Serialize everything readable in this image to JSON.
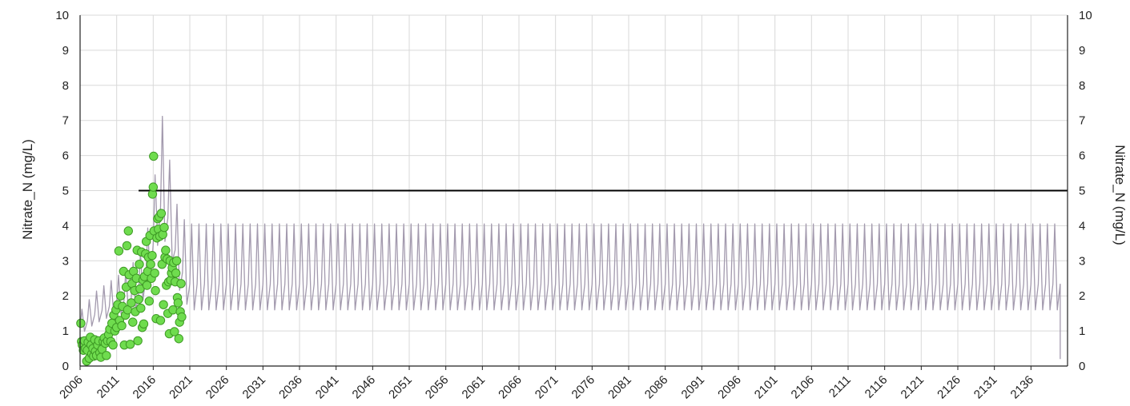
{
  "chart_data": {
    "type": "line",
    "title": "",
    "ylabel": "Nitrate_N (mg/L)",
    "ylabel_right": "Nitrate_N (mg/L)",
    "xlabel": "",
    "xlim": [
      2006,
      2141
    ],
    "ylim": [
      0,
      10
    ],
    "yticks": [
      0,
      1,
      2,
      3,
      4,
      5,
      6,
      7,
      8,
      9,
      10
    ],
    "xticks": [
      "2006",
      "2011",
      "2016",
      "2021",
      "2026",
      "2031",
      "2036",
      "2041",
      "2046",
      "2051",
      "2056",
      "2061",
      "2066",
      "2071",
      "2076",
      "2081",
      "2086",
      "2091",
      "2096",
      "2101",
      "2106",
      "2111",
      "2116",
      "2121",
      "2126",
      "2131",
      "2136"
    ],
    "grid": true,
    "colors": {
      "model": "#a39aae",
      "observed_fill": "#6fdc4e",
      "observed_edge": "#3e9a25",
      "threshold": "#000000",
      "grid": "#d9d9d9",
      "axis": "#222222"
    },
    "series": [
      {
        "kind": "model_line",
        "period_years": 1.0,
        "segments": [
          {
            "year": 2006.0,
            "min": 0.9,
            "max": 1.55
          },
          {
            "year": 2008.0,
            "min": 1.2,
            "max": 2.1
          },
          {
            "year": 2010.0,
            "min": 1.4,
            "max": 2.4
          },
          {
            "year": 2012.0,
            "min": 1.5,
            "max": 2.7
          },
          {
            "year": 2014.0,
            "min": 1.6,
            "max": 3.1
          },
          {
            "year": 2015.5,
            "min": 2.3,
            "max": 4.1
          },
          {
            "year": 2016.5,
            "min": 3.4,
            "max": 5.9
          },
          {
            "year": 2017.3,
            "min": 3.7,
            "max": 7.2
          },
          {
            "year": 2018.3,
            "min": 3.2,
            "max": 5.8
          },
          {
            "year": 2019.5,
            "min": 2.2,
            "max": 4.3
          },
          {
            "year": 2021.0,
            "min": 1.6,
            "max": 4.05
          },
          {
            "year": 2140.0,
            "min": 1.6,
            "max": 4.05
          }
        ]
      },
      {
        "kind": "threshold",
        "x": [
          2014.0,
          2141.0
        ],
        "y": 5.0
      },
      {
        "kind": "observed_points",
        "points": [
          [
            2006.1,
            1.22
          ],
          [
            2006.2,
            0.7
          ],
          [
            2006.3,
            0.6
          ],
          [
            2006.45,
            0.45
          ],
          [
            2006.6,
            0.72
          ],
          [
            2006.75,
            0.5
          ],
          [
            2006.9,
            0.14
          ],
          [
            2007.0,
            0.45
          ],
          [
            2007.1,
            0.68
          ],
          [
            2007.25,
            0.22
          ],
          [
            2007.4,
            0.82
          ],
          [
            2007.5,
            0.6
          ],
          [
            2007.6,
            0.35
          ],
          [
            2007.75,
            0.5
          ],
          [
            2007.85,
            0.28
          ],
          [
            2008.0,
            0.75
          ],
          [
            2008.1,
            0.42
          ],
          [
            2008.25,
            0.3
          ],
          [
            2008.4,
            0.6
          ],
          [
            2008.55,
            0.72
          ],
          [
            2008.7,
            0.38
          ],
          [
            2008.85,
            0.25
          ],
          [
            2009.0,
            0.48
          ],
          [
            2009.15,
            0.7
          ],
          [
            2009.3,
            0.8
          ],
          [
            2009.45,
            0.65
          ],
          [
            2009.6,
            0.3
          ],
          [
            2009.75,
            0.72
          ],
          [
            2009.9,
            0.9
          ],
          [
            2010.05,
            1.05
          ],
          [
            2010.2,
            0.7
          ],
          [
            2010.35,
            1.22
          ],
          [
            2010.5,
            0.6
          ],
          [
            2010.6,
            1.45
          ],
          [
            2010.75,
            1.0
          ],
          [
            2010.9,
            1.6
          ],
          [
            2011.0,
            1.1
          ],
          [
            2011.15,
            1.75
          ],
          [
            2011.3,
            3.28
          ],
          [
            2011.4,
            1.3
          ],
          [
            2011.55,
            2.0
          ],
          [
            2011.7,
            1.15
          ],
          [
            2011.8,
            1.7
          ],
          [
            2011.95,
            2.7
          ],
          [
            2012.05,
            0.6
          ],
          [
            2012.2,
            1.45
          ],
          [
            2012.3,
            2.25
          ],
          [
            2012.4,
            3.43
          ],
          [
            2012.5,
            1.6
          ],
          [
            2012.6,
            3.85
          ],
          [
            2012.7,
            2.6
          ],
          [
            2012.85,
            0.62
          ],
          [
            2013.0,
            1.8
          ],
          [
            2013.1,
            2.35
          ],
          [
            2013.2,
            1.25
          ],
          [
            2013.3,
            2.7
          ],
          [
            2013.45,
            2.15
          ],
          [
            2013.55,
            1.55
          ],
          [
            2013.7,
            2.5
          ],
          [
            2013.8,
            3.3
          ],
          [
            2013.9,
            0.72
          ],
          [
            2014.0,
            1.9
          ],
          [
            2014.1,
            2.9
          ],
          [
            2014.2,
            2.2
          ],
          [
            2014.3,
            1.65
          ],
          [
            2014.4,
            3.25
          ],
          [
            2014.5,
            1.1
          ],
          [
            2014.6,
            2.45
          ],
          [
            2014.7,
            1.2
          ],
          [
            2014.8,
            2.55
          ],
          [
            2014.95,
            3.2
          ],
          [
            2015.05,
            3.55
          ],
          [
            2015.15,
            2.3
          ],
          [
            2015.25,
            2.7
          ],
          [
            2015.35,
            3.1
          ],
          [
            2015.45,
            1.85
          ],
          [
            2015.55,
            3.72
          ],
          [
            2015.65,
            2.9
          ],
          [
            2015.75,
            2.5
          ],
          [
            2015.85,
            3.15
          ],
          [
            2015.9,
            4.9
          ],
          [
            2016.0,
            5.1
          ],
          [
            2016.05,
            5.98
          ],
          [
            2016.1,
            3.85
          ],
          [
            2016.2,
            2.65
          ],
          [
            2016.3,
            2.15
          ],
          [
            2016.4,
            1.35
          ],
          [
            2016.5,
            3.65
          ],
          [
            2016.6,
            4.2
          ],
          [
            2016.7,
            3.9
          ],
          [
            2016.8,
            4.25
          ],
          [
            2016.9,
            3.7
          ],
          [
            2017.0,
            1.3
          ],
          [
            2017.1,
            4.35
          ],
          [
            2017.2,
            2.9
          ],
          [
            2017.3,
            3.75
          ],
          [
            2017.4,
            1.75
          ],
          [
            2017.5,
            3.95
          ],
          [
            2017.6,
            3.1
          ],
          [
            2017.7,
            3.3
          ],
          [
            2017.8,
            2.3
          ],
          [
            2017.9,
            3.05
          ],
          [
            2018.0,
            1.5
          ],
          [
            2018.1,
            2.4
          ],
          [
            2018.2,
            0.92
          ],
          [
            2018.3,
            3.0
          ],
          [
            2018.4,
            2.45
          ],
          [
            2018.5,
            2.65
          ],
          [
            2018.6,
            2.8
          ],
          [
            2018.7,
            1.6
          ],
          [
            2018.8,
            2.95
          ],
          [
            2018.9,
            0.98
          ],
          [
            2019.0,
            2.4
          ],
          [
            2019.1,
            2.65
          ],
          [
            2019.2,
            3.0
          ],
          [
            2019.3,
            1.95
          ],
          [
            2019.4,
            1.8
          ],
          [
            2019.5,
            0.78
          ],
          [
            2019.6,
            1.25
          ],
          [
            2019.7,
            1.55
          ],
          [
            2019.8,
            2.35
          ],
          [
            2019.9,
            1.4
          ]
        ]
      }
    ]
  }
}
